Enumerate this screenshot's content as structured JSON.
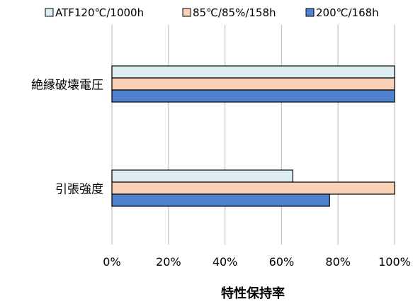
{
  "chart_data": {
    "type": "bar",
    "orientation": "horizontal",
    "categories": [
      "絶縁破壊電圧",
      "引張強度"
    ],
    "series": [
      {
        "name": "ATF120℃/1000h",
        "color": "#DDEEF3",
        "values": [
          100,
          64
        ]
      },
      {
        "name": "85℃/85%/158h",
        "color": "#FAD1B6",
        "values": [
          100,
          100
        ]
      },
      {
        "name": "200℃/168h",
        "color": "#4F83D1",
        "values": [
          100,
          77
        ]
      }
    ],
    "xticks": [
      0,
      20,
      40,
      60,
      80,
      100
    ],
    "tick_suffix": "%",
    "xlim": [
      0,
      100
    ],
    "xlabel": "特性保持率",
    "grid": "vertical",
    "legend": "top"
  }
}
